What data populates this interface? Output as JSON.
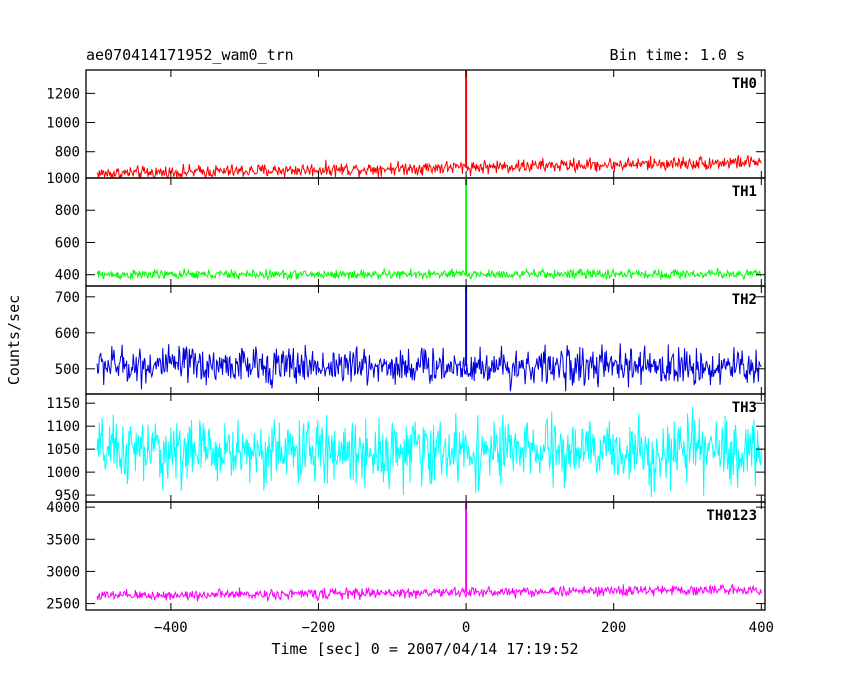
{
  "header": {
    "left_title": "ae070414171952_wam0_trn",
    "right_title": "Bin time: 1.0 s"
  },
  "axes": {
    "xlabel": "Time [sec] 0 = 2007/04/14 17:19:52",
    "ylabel": "Counts/sec"
  },
  "chart_data": {
    "type": "line",
    "xlim": [
      -515,
      405
    ],
    "x_ticks": [
      -400,
      -200,
      0,
      200,
      400
    ],
    "x_tick_labels": [
      "−400",
      "−200",
      "0",
      "200",
      "400"
    ],
    "panels": [
      {
        "label": "TH0",
        "color": "#ff0000",
        "ylim": [
          620,
          1360
        ],
        "y_ticks": [
          800,
          1000,
          1200
        ],
        "y_tick_labels": [
          "800",
          "1000",
          "1200"
        ],
        "x_range": [
          -500,
          400
        ],
        "base_start": 650,
        "base_end": 730,
        "noise_amp": 40,
        "spike_x": 0,
        "spike_y": 1360
      },
      {
        "label": "TH1",
        "color": "#00ff00",
        "ylim": [
          330,
          1000
        ],
        "y_ticks": [
          400,
          600,
          800,
          1000
        ],
        "y_tick_labels": [
          "400",
          "600",
          "800",
          "1000"
        ],
        "x_range": [
          -500,
          400
        ],
        "base_start": 400,
        "base_end": 405,
        "noise_amp": 25,
        "spike_x": 0,
        "spike_y": 1000
      },
      {
        "label": "TH2",
        "color": "#0000dd",
        "ylim": [
          430,
          730
        ],
        "y_ticks": [
          500,
          600,
          700
        ],
        "y_tick_labels": [
          "500",
          "600",
          "700"
        ],
        "x_range": [
          -500,
          400
        ],
        "base_start": 510,
        "base_end": 505,
        "noise_amp": 45,
        "spike_x": 0,
        "spike_y": 730
      },
      {
        "label": "TH3",
        "color": "#00ffff",
        "ylim": [
          935,
          1170
        ],
        "y_ticks": [
          950,
          1000,
          1050,
          1100,
          1150
        ],
        "y_tick_labels": [
          "950",
          "1000",
          "1050",
          "1100",
          "1150"
        ],
        "x_range": [
          -500,
          400
        ],
        "base_start": 1045,
        "base_end": 1045,
        "noise_amp": 60,
        "spike_x": null,
        "spike_y": null
      },
      {
        "label": "TH0123",
        "color": "#ff00ff",
        "ylim": [
          2400,
          4080
        ],
        "y_ticks": [
          2500,
          3000,
          3500,
          4000
        ],
        "y_tick_labels": [
          "2500",
          "3000",
          "3500",
          "4000"
        ],
        "x_range": [
          -500,
          400
        ],
        "base_start": 2620,
        "base_end": 2720,
        "noise_amp": 70,
        "spike_x": 0,
        "spike_y": 4080
      }
    ]
  }
}
